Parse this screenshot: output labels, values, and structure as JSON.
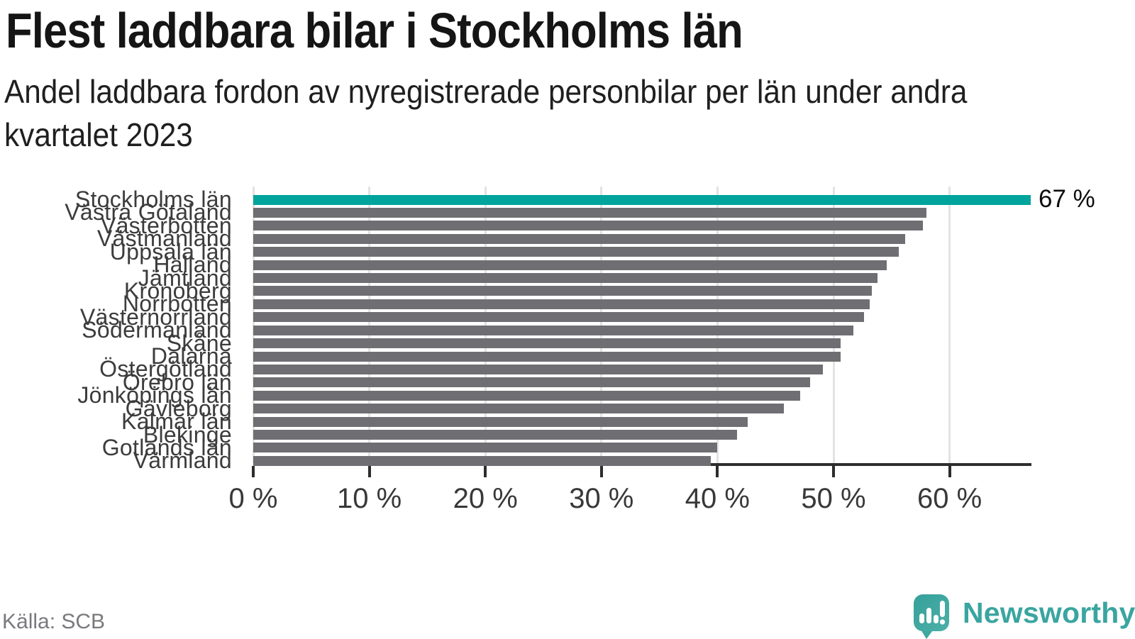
{
  "header": {
    "title": "Flest laddbara bilar i Stockholms län",
    "subtitle_line1": "Andel laddbara fordon av nyregistrerade personbilar per län under andra",
    "subtitle_line2": "kvartalet 2023"
  },
  "footer": {
    "source": "Källa: SCB",
    "brand": "Newsworthy"
  },
  "colors": {
    "highlight": "#00a49c",
    "bar": "#6f6e73",
    "gridline": "#e3e3e3",
    "axis": "#2d2d2d",
    "logo_teal": "#3aa5a0"
  },
  "icons": {
    "logo": "newsworthy-speech-bubble-bar-chart-icon"
  },
  "chart_data": {
    "type": "bar",
    "orientation": "horizontal",
    "title": "Flest laddbara bilar i Stockholms län",
    "subtitle": "Andel laddbara fordon av nyregistrerade personbilar per län under andra kvartalet 2023",
    "categories": [
      "Stockholms län",
      "Västra Götaland",
      "Västerbotten",
      "Västmanland",
      "Uppsala län",
      "Halland",
      "Jämtland",
      "Kronoberg",
      "Norrbotten",
      "Västernorrland",
      "Södermanland",
      "Skåne",
      "Dalarna",
      "Östergötland",
      "Örebro län",
      "Jönköpings län",
      "Gävleborg",
      "Kalmar län",
      "Blekinge",
      "Gotlands län",
      "Värmland"
    ],
    "values": [
      67,
      58,
      57.7,
      56.2,
      55.6,
      54.6,
      53.8,
      53.3,
      53.1,
      52.6,
      51.7,
      50.6,
      50.6,
      49.1,
      48,
      47.1,
      45.7,
      42.6,
      41.7,
      40,
      39.4
    ],
    "unit": "%",
    "highlight_category": "Stockholms län",
    "value_label": {
      "category": "Stockholms län",
      "text": "67 %"
    },
    "x_ticks": [
      {
        "value": 0,
        "label": "0 %"
      },
      {
        "value": 10,
        "label": "10 %"
      },
      {
        "value": 20,
        "label": "20 %"
      },
      {
        "value": 30,
        "label": "30 %"
      },
      {
        "value": 40,
        "label": "40 %"
      },
      {
        "value": 50,
        "label": "50 %"
      },
      {
        "value": 60,
        "label": "60 %"
      }
    ],
    "xlim": [
      0,
      67
    ],
    "grid": true,
    "legend": false,
    "source": "Källa: SCB"
  }
}
